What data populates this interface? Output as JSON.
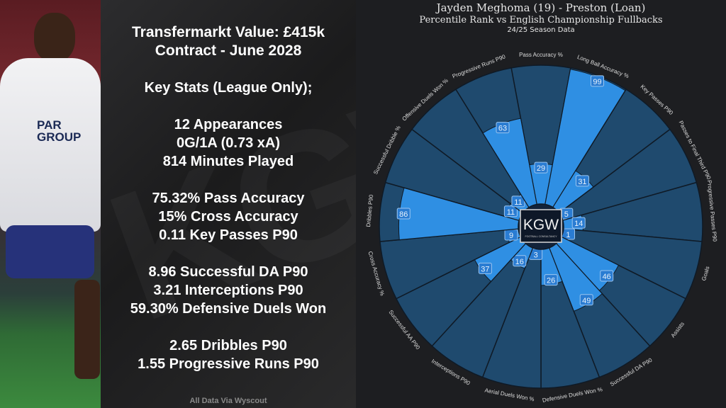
{
  "stats_panel": {
    "lines": [
      "Transfermarkt Value: £415k",
      "Contract - June 2028",
      "",
      "Key Stats (League Only);",
      "",
      "12 Appearances",
      "0G/1A (0.73 xA)",
      "814 Minutes Played",
      "",
      "75.32% Pass Accuracy",
      "15% Cross Accuracy",
      "0.11 Key Passes P90",
      "",
      "8.96 Successful DA P90",
      "3.21 Interceptions P90",
      "59.30% Defensive Duels Won",
      "",
      "2.65 Dribbles P90",
      "1.55 Progressive Runs P90"
    ],
    "footer": "All Data Via Wyscout",
    "watermark": "KGW"
  },
  "photo": {
    "sponsor": "PAR GROUP"
  },
  "chart_data": {
    "type": "pie",
    "subtype": "percentile-pizza",
    "title": "Jayden Meghoma (19) - Preston (Loan)",
    "subtitle": "Percentile Rank vs English Championship Fullbacks",
    "caption": "24/25 Season Data",
    "center_logo": "KGW",
    "center_logo_sub": "FOOTBALL CONSULTANCY",
    "range": [
      0,
      100
    ],
    "categories": [
      "Pass Accuracy %",
      "Long Ball Accuracy %",
      "Key Passes P90",
      "Passes to Final Third P90",
      "Progressive Passes P90",
      "Goals",
      "Assists",
      "Successful DA P90",
      "Defensive Duels Won %",
      "Aerial Duels Won %",
      "Interceptions P90",
      "Successful AA P90",
      "Cross Accuracy %",
      "Dribbles P90",
      "Successful Dribble %",
      "Offensive Duels Won %",
      "Progressive Runs P90"
    ],
    "values": [
      29,
      99,
      31,
      5,
      14,
      1,
      46,
      49,
      26,
      3,
      16,
      37,
      9,
      86,
      11,
      11,
      63
    ],
    "colors": {
      "background_slice": "#1f4a6e",
      "value_slice": "#2f8fe3",
      "edge": "#0f1a26",
      "label_box": "#2a7cd2",
      "text": "#dcdcdc"
    }
  }
}
